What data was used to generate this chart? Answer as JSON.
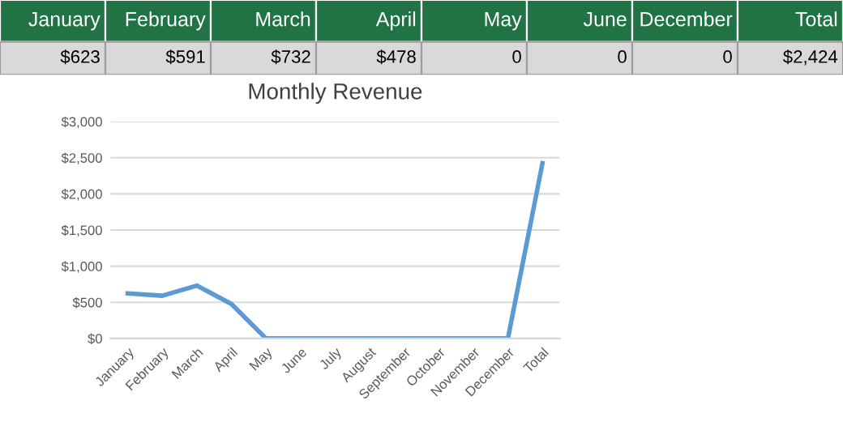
{
  "chart_data": [
    {
      "type": "other",
      "annotations": [
        "January",
        "February",
        "March",
        "April",
        "May",
        "June",
        "December",
        "Total",
        "$623",
        "$591",
        "$732",
        "$478",
        "0",
        "0",
        "0",
        "$2,424"
      ]
    },
    {
      "type": "line",
      "title": "Monthly Revenue",
      "categories": [
        "January",
        "February",
        "March",
        "April",
        "May",
        "June",
        "July",
        "August",
        "September",
        "October",
        "November",
        "December",
        "Total"
      ],
      "series": [
        {
          "color": "#5b9bd5",
          "values": [
            623,
            591,
            732,
            478,
            0,
            0,
            0,
            0,
            0,
            0,
            0,
            0,
            2424
          ]
        }
      ],
      "ylim": [
        0,
        3000
      ],
      "yticks": [
        {
          "value": 0,
          "label": "$0"
        },
        {
          "value": 500,
          "label": "$500"
        },
        {
          "value": 1000,
          "label": "$1,000"
        },
        {
          "value": 1500,
          "label": "$1,500"
        },
        {
          "value": 2000,
          "label": "$2,000"
        },
        {
          "value": 2500,
          "label": "$2,500"
        },
        {
          "value": 3000,
          "label": "$3,000"
        }
      ],
      "grid": "y"
    }
  ]
}
